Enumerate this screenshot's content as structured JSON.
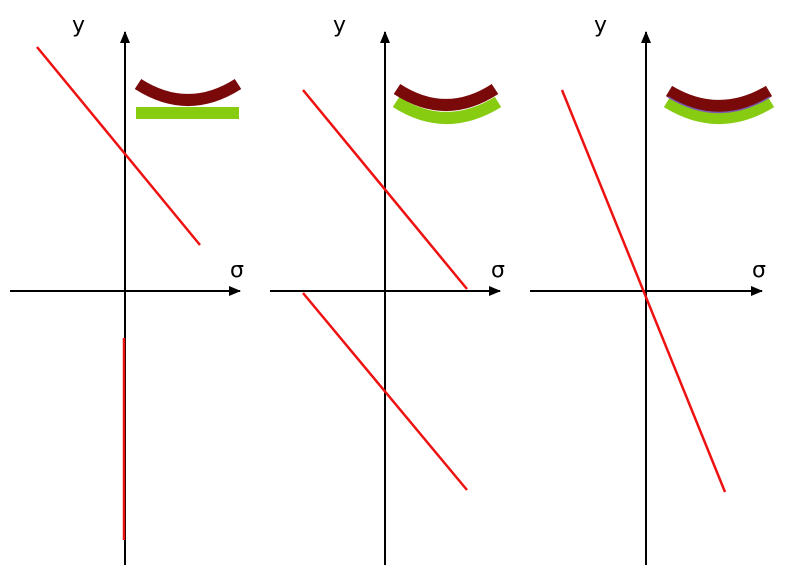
{
  "colors": {
    "background": "#ffffff",
    "axis": "#000000",
    "stress_line": "#ee1111",
    "layer_top": "#7a0a0a",
    "layer_bottom": "#88cc11",
    "interface": "#7a5ab0"
  },
  "panels": [
    {
      "id": "separate-layers",
      "y_label": "y",
      "x_label": "σ"
    },
    {
      "id": "bent-layers-slip",
      "y_label": "y",
      "x_label": "σ"
    },
    {
      "id": "bonded-layers",
      "y_label": "y",
      "x_label": "σ"
    }
  ]
}
